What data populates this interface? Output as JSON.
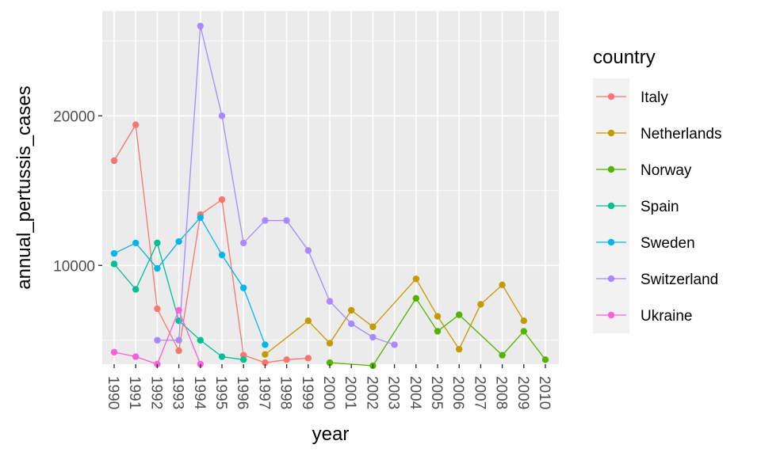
{
  "chart_data": {
    "type": "line",
    "xlabel": "year",
    "ylabel": "annual_pertussis_cases",
    "x_categories": [
      "1990",
      "1991",
      "1992",
      "1993",
      "1994",
      "1995",
      "1996",
      "1997",
      "1998",
      "1999",
      "2000",
      "2001",
      "2002",
      "2003",
      "2004",
      "2005",
      "2006",
      "2007",
      "2008",
      "2009",
      "2010"
    ],
    "y_ticks": [
      10000,
      20000
    ],
    "y_tick_labels": [
      "10000",
      "20000"
    ],
    "ylim": [
      3400,
      27000
    ],
    "grid": true,
    "legend": {
      "title": "country",
      "position": "right"
    },
    "series": [
      {
        "name": "Italy",
        "color": "#F8766D",
        "points": [
          [
            "1990",
            17000
          ],
          [
            "1991",
            19400
          ],
          [
            "1992",
            7100
          ],
          [
            "1993",
            4300
          ],
          [
            "1994",
            13400
          ],
          [
            "1995",
            14400
          ],
          [
            "1996",
            4000
          ],
          [
            "1997",
            3500
          ],
          [
            "1998",
            3700
          ],
          [
            "1999",
            3800
          ]
        ]
      },
      {
        "name": "Netherlands",
        "color": "#C49A00",
        "points": [
          [
            "1997",
            4050
          ],
          [
            "1999",
            6300
          ],
          [
            "2000",
            4800
          ],
          [
            "2001",
            7000
          ],
          [
            "2002",
            5900
          ],
          [
            "2004",
            9100
          ],
          [
            "2005",
            6600
          ],
          [
            "2006",
            4400
          ],
          [
            "2007",
            7400
          ],
          [
            "2008",
            8700
          ],
          [
            "2009",
            6300
          ]
        ]
      },
      {
        "name": "Norway",
        "color": "#53B400",
        "points": [
          [
            "2000",
            3500
          ],
          [
            "2002",
            3300
          ],
          [
            "2004",
            7800
          ],
          [
            "2005",
            5600
          ],
          [
            "2006",
            6700
          ],
          [
            "2008",
            4000
          ],
          [
            "2009",
            5600
          ],
          [
            "2010",
            3700
          ]
        ]
      },
      {
        "name": "Spain",
        "color": "#00C094",
        "points": [
          [
            "1990",
            10100
          ],
          [
            "1991",
            8400
          ],
          [
            "1992",
            11500
          ],
          [
            "1993",
            6300
          ],
          [
            "1994",
            5000
          ],
          [
            "1995",
            3900
          ],
          [
            "1996",
            3700
          ]
        ]
      },
      {
        "name": "Sweden",
        "color": "#00B6EB",
        "points": [
          [
            "1990",
            10800
          ],
          [
            "1991",
            11500
          ],
          [
            "1992",
            9800
          ],
          [
            "1993",
            11600
          ],
          [
            "1994",
            13200
          ],
          [
            "1995",
            10700
          ],
          [
            "1996",
            8500
          ],
          [
            "1997",
            4700
          ]
        ]
      },
      {
        "name": "Switzerland",
        "color": "#A58AFF",
        "points": [
          [
            "1992",
            5000
          ],
          [
            "1993",
            5000
          ],
          [
            "1994",
            26000
          ],
          [
            "1995",
            20000
          ],
          [
            "1996",
            11500
          ],
          [
            "1997",
            13000
          ],
          [
            "1998",
            13000
          ],
          [
            "1999",
            11000
          ],
          [
            "2000",
            7600
          ],
          [
            "2001",
            6100
          ],
          [
            "2002",
            5200
          ],
          [
            "2003",
            4700
          ]
        ]
      },
      {
        "name": "Ukraine",
        "color": "#FB61D7",
        "points": [
          [
            "1990",
            4200
          ],
          [
            "1991",
            3900
          ],
          [
            "1992",
            3400
          ],
          [
            "1993",
            7000
          ],
          [
            "1994",
            3400
          ]
        ]
      }
    ]
  }
}
